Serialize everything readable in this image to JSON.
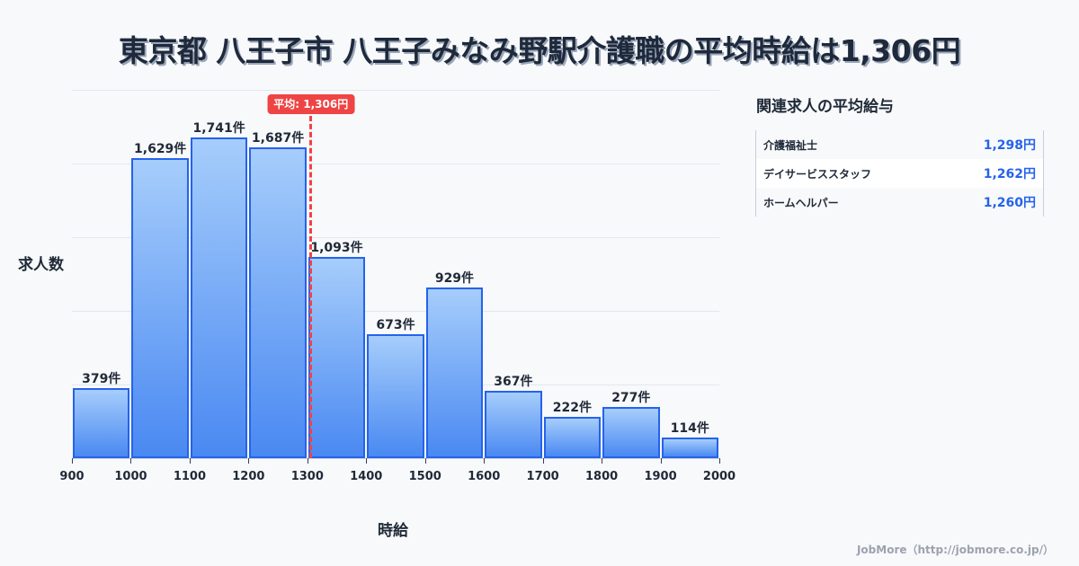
{
  "header": {
    "title": "東京都 八王子市 八王子みなみ野駅介護職の平均時給は1,306円"
  },
  "chart_data": {
    "type": "bar",
    "title": "東京都 八王子市 八王子みなみ野駅介護職の平均時給は1,306円",
    "xlabel": "時給",
    "ylabel": "求人数",
    "bins": [
      {
        "range": [
          900,
          1000
        ],
        "count": 379,
        "label": "379件"
      },
      {
        "range": [
          1000,
          1100
        ],
        "count": 1629,
        "label": "1,629件"
      },
      {
        "range": [
          1100,
          1200
        ],
        "count": 1741,
        "label": "1,741件"
      },
      {
        "range": [
          1200,
          1300
        ],
        "count": 1687,
        "label": "1,687件"
      },
      {
        "range": [
          1300,
          1400
        ],
        "count": 1093,
        "label": "1,093件"
      },
      {
        "range": [
          1400,
          1500
        ],
        "count": 673,
        "label": "673件"
      },
      {
        "range": [
          1500,
          1600
        ],
        "count": 929,
        "label": "929件"
      },
      {
        "range": [
          1600,
          1700
        ],
        "count": 367,
        "label": "367件"
      },
      {
        "range": [
          1700,
          1800
        ],
        "count": 222,
        "label": "222件"
      },
      {
        "range": [
          1800,
          1900
        ],
        "count": 277,
        "label": "277件"
      },
      {
        "range": [
          1900,
          2000
        ],
        "count": 114,
        "label": "114件"
      }
    ],
    "categories": [
      "900-1000",
      "1000-1100",
      "1100-1200",
      "1200-1300",
      "1300-1400",
      "1400-1500",
      "1500-1600",
      "1600-1700",
      "1700-1800",
      "1800-1900",
      "1900-2000"
    ],
    "values": [
      379,
      1629,
      1741,
      1687,
      1093,
      673,
      929,
      367,
      222,
      277,
      114
    ],
    "x_ticks": [
      "900",
      "1000",
      "1100",
      "1200",
      "1300",
      "1400",
      "1500",
      "1600",
      "1700",
      "1800",
      "1900",
      "2000"
    ],
    "xlim": [
      900,
      2000
    ],
    "ylim": [
      0,
      2000
    ],
    "grid": true,
    "gridlines_y": [
      400,
      800,
      1200,
      1600,
      2000
    ],
    "annotation": {
      "type": "vline",
      "x": 1306,
      "label": "平均: 1,306円",
      "color": "#ef4444"
    },
    "bar_color": "#4a89f2",
    "bar_edge_color": "#2563eb"
  },
  "axes": {
    "ylabel": "求人数",
    "xlabel": "時給",
    "avg_badge": "平均: 1,306円"
  },
  "sidebar": {
    "title": "関連求人の平均給与",
    "rows": [
      {
        "name": "介護福祉士",
        "value": "1,298円"
      },
      {
        "name": "デイサービススタッフ",
        "value": "1,262円"
      },
      {
        "name": "ホームヘルパー",
        "value": "1,260円"
      }
    ]
  },
  "footer": {
    "credit": "JobMore（http://jobmore.co.jp/）"
  },
  "colors": {
    "accent": "#2563eb",
    "average": "#ef4444",
    "text": "#1f2937",
    "background": "#f8f9fb"
  }
}
